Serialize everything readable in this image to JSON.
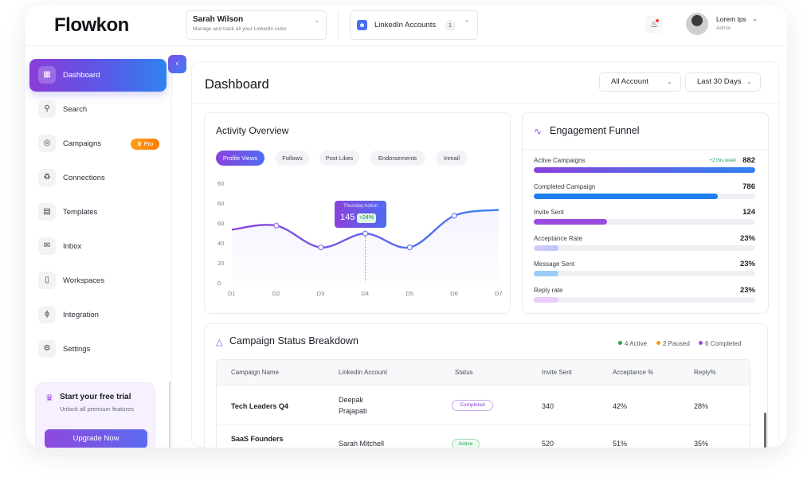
{
  "header": {
    "logo": "Flowkon",
    "account": {
      "name": "Sarah Wilson",
      "subtitle": "Manage and track all your LinkedIn outre"
    },
    "linkedin": {
      "label": "LinkedIn Accounts",
      "count": "1"
    },
    "user": {
      "name": "Lorem Ips",
      "role": "Admin"
    }
  },
  "sidebar": {
    "items": [
      {
        "label": "Dashboard",
        "icon": "grid-icon",
        "active": true
      },
      {
        "label": "Search",
        "icon": "search-icon"
      },
      {
        "label": "Campaigns",
        "icon": "target-icon",
        "badge": "Pro"
      },
      {
        "label": "Connections",
        "icon": "network-icon"
      },
      {
        "label": "Templates",
        "icon": "document-icon"
      },
      {
        "label": "Inbox",
        "icon": "inbox-icon"
      },
      {
        "label": "Workspaces",
        "icon": "folder-icon"
      },
      {
        "label": "Integration",
        "icon": "plug-icon"
      },
      {
        "label": "Settings",
        "icon": "gear-icon"
      }
    ],
    "trial": {
      "title": "Start your free trial",
      "desc": "Unlock all premium features",
      "button": "Upgrade Now"
    }
  },
  "main": {
    "title": "Dashboard",
    "filters": {
      "account": "All Account",
      "range": "Last 30 Days"
    }
  },
  "activity": {
    "title": "Activity Overview",
    "tabs": [
      "Profile Views",
      "Follows",
      "Post Likes",
      "Endorsements",
      "Inmail"
    ],
    "tooltip": {
      "title": "Thursday Action",
      "value": "145",
      "change": "+24%"
    }
  },
  "chart_data": {
    "type": "line",
    "title": "Activity Overview",
    "x": [
      "D1",
      "D2",
      "D3",
      "D4",
      "D5",
      "D6",
      "D7"
    ],
    "series": [
      {
        "name": "Profile Views",
        "values": [
          53,
          57,
          35,
          49,
          35,
          67,
          73
        ]
      }
    ],
    "y_ticks": [
      "60",
      "60",
      "60",
      "40",
      "20",
      "0"
    ],
    "ylim": [
      0,
      100
    ],
    "grid": false,
    "colors": {
      "start": "#8a42dd",
      "end": "#3b82f6"
    }
  },
  "funnel": {
    "title": "Engagement Funnel",
    "rows": [
      {
        "label": "Active Campaigns",
        "value": "882",
        "note": "+2 this week",
        "fill": 1.0,
        "color": "linear-gradient(90deg,#8a42dd,#2f83f0)"
      },
      {
        "label": "Completed Campaign",
        "value": "786",
        "fill": 0.83,
        "color": "#1e7ff0"
      },
      {
        "label": "Invite Sent",
        "value": "124",
        "fill": 0.33,
        "color": "#9a4be0"
      },
      {
        "label": "Acceptance Rate",
        "value": "23%",
        "fill": 0.11,
        "color": "linear-gradient(90deg,#e0c8fb,#b8c8fb)"
      },
      {
        "label": "Message Sent",
        "value": "23%",
        "fill": 0.11,
        "color": "#9ccbf7"
      },
      {
        "label": "Reply rate",
        "value": "23%",
        "fill": 0.11,
        "color": "#e8cdfb"
      }
    ]
  },
  "campaigns": {
    "title": "Campaign Status Breakdown",
    "legend": [
      {
        "label": "4 Active",
        "color": "#22a55a"
      },
      {
        "label": "2 Paused",
        "color": "#f59e0b"
      },
      {
        "label": "6 Completed",
        "color": "#9a4be0"
      }
    ],
    "columns": [
      "Campaign Name",
      "LinkedIn Account",
      "Status",
      "Invite Sent",
      "Acceptance %",
      "Reply%"
    ],
    "rows": [
      {
        "name": "Tech Leaders Q4",
        "account_first": "Deepak",
        "account_last": "Prajapati",
        "status": "Completed",
        "invites": "340",
        "acceptance": "42%",
        "reply": "28%"
      },
      {
        "name": "SaaS Founders",
        "account_first": "Sarah Mitchell",
        "account_last": "",
        "status": "Active",
        "invites": "520",
        "acceptance": "51%",
        "reply": "35%"
      }
    ]
  }
}
